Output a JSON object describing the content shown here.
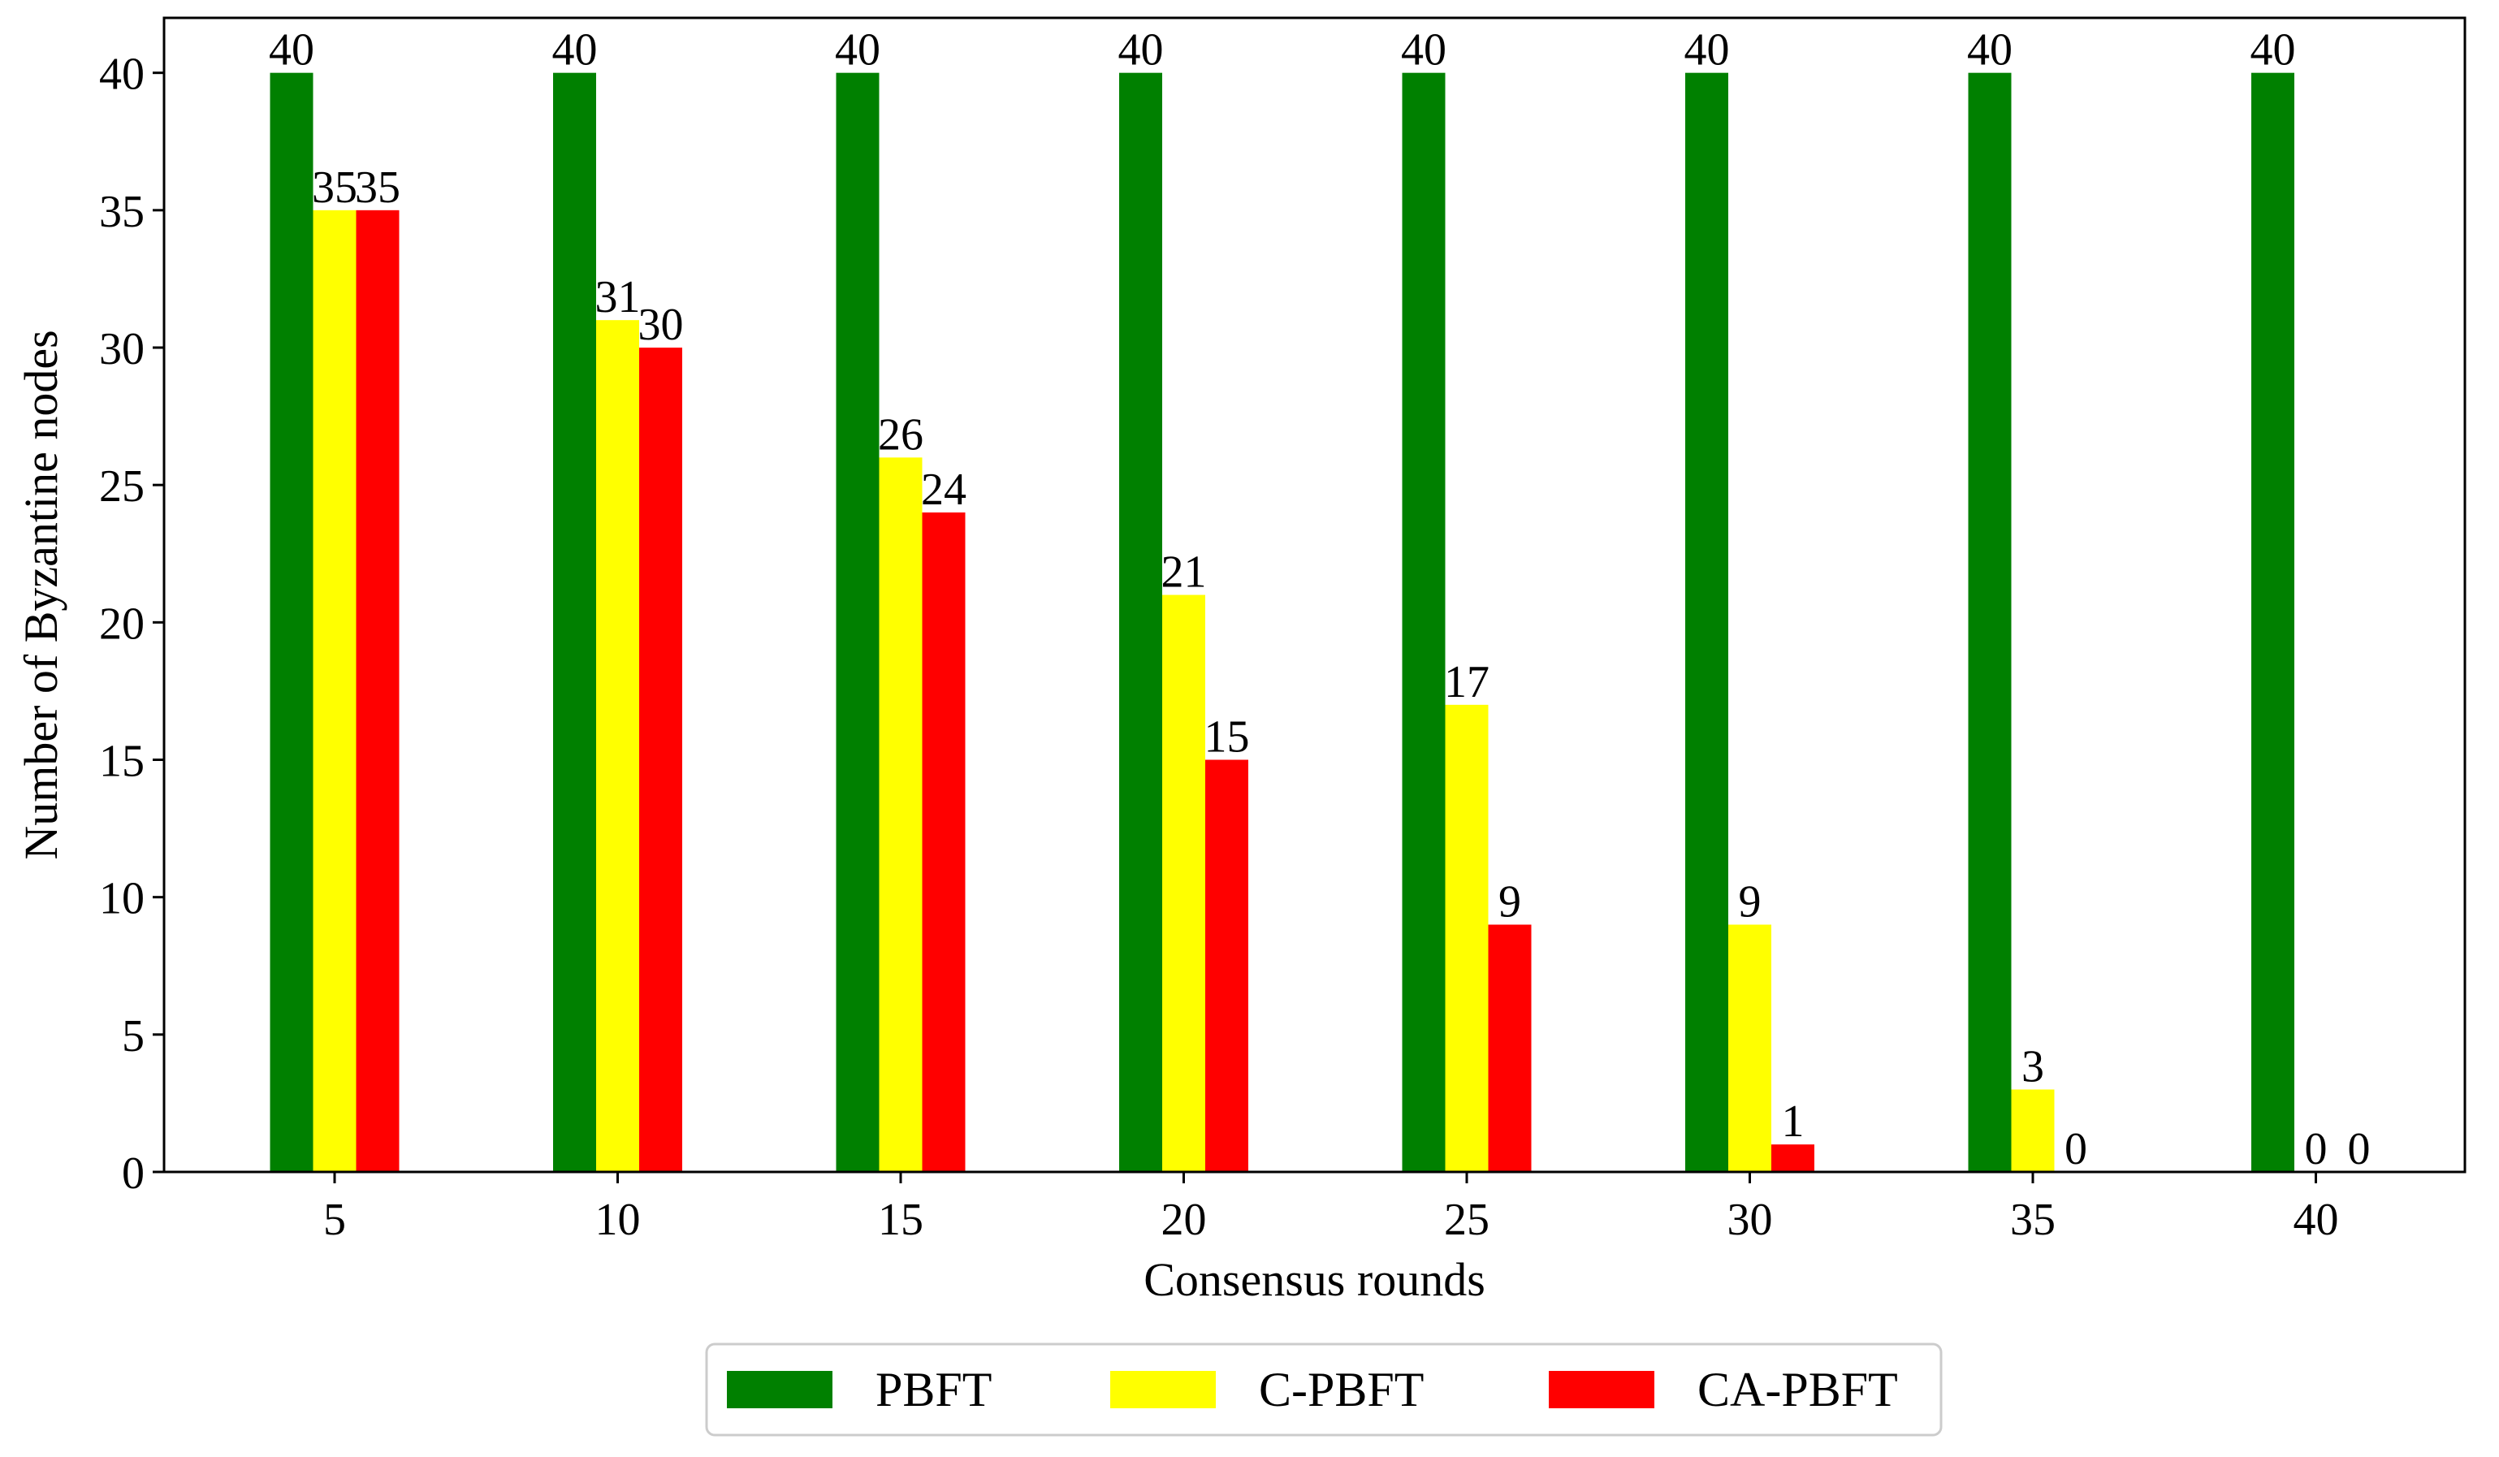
{
  "chart_data": {
    "type": "bar",
    "title": "",
    "xlabel": "Consensus rounds",
    "ylabel": "Number of Byzantine nodes",
    "categories": [
      "5",
      "10",
      "15",
      "20",
      "25",
      "30",
      "35",
      "40"
    ],
    "ylim": [
      0,
      42
    ],
    "yticks": [
      0,
      5,
      10,
      15,
      20,
      25,
      30,
      35,
      40
    ],
    "grid": false,
    "legend_position": "bottom-center",
    "series": [
      {
        "name": "PBFT",
        "color": "#008000",
        "values": [
          40,
          40,
          40,
          40,
          40,
          40,
          40,
          40
        ],
        "labels": [
          "40",
          "40",
          "40",
          "40",
          "40",
          "40",
          "40",
          "40"
        ]
      },
      {
        "name": "C-PBFT",
        "color": "#ffff00",
        "values": [
          35,
          31,
          26,
          21,
          17,
          9,
          3,
          0
        ],
        "labels": [
          "35",
          "31",
          "26",
          "21",
          "17",
          "9",
          "3",
          "0"
        ]
      },
      {
        "name": "CA-PBFT",
        "color": "#ff0000",
        "values": [
          35,
          30,
          24,
          15,
          9,
          1,
          0,
          0
        ],
        "labels": [
          "35",
          "30",
          "24",
          "15",
          "9",
          "1",
          "0",
          "0"
        ]
      }
    ]
  }
}
